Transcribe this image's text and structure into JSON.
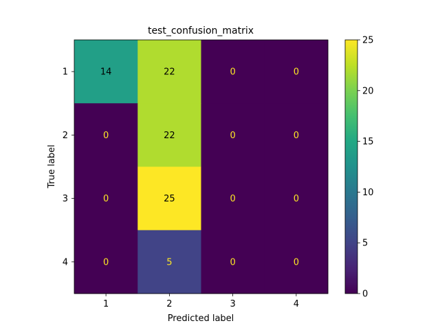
{
  "chart_data": {
    "type": "heatmap",
    "title": "test_confusion_matrix",
    "xlabel": "Predicted label",
    "ylabel": "True label",
    "x_categories": [
      "1",
      "2",
      "3",
      "4"
    ],
    "y_categories": [
      "1",
      "2",
      "3",
      "4"
    ],
    "matrix": [
      [
        14,
        22,
        0,
        0
      ],
      [
        0,
        22,
        0,
        0
      ],
      [
        0,
        25,
        0,
        0
      ],
      [
        0,
        5,
        0,
        0
      ]
    ],
    "colormap": "viridis",
    "color_range": [
      0,
      25
    ],
    "colorbar_ticks": [
      0,
      5,
      10,
      15,
      20,
      25
    ],
    "colorbar_tick_labels": [
      "0",
      "5",
      "10",
      "15",
      "20",
      "25"
    ],
    "legend": "colorbar-right",
    "grid": false,
    "text_colors": {
      "on_dark": "#fde725",
      "on_light": "#000000"
    }
  }
}
